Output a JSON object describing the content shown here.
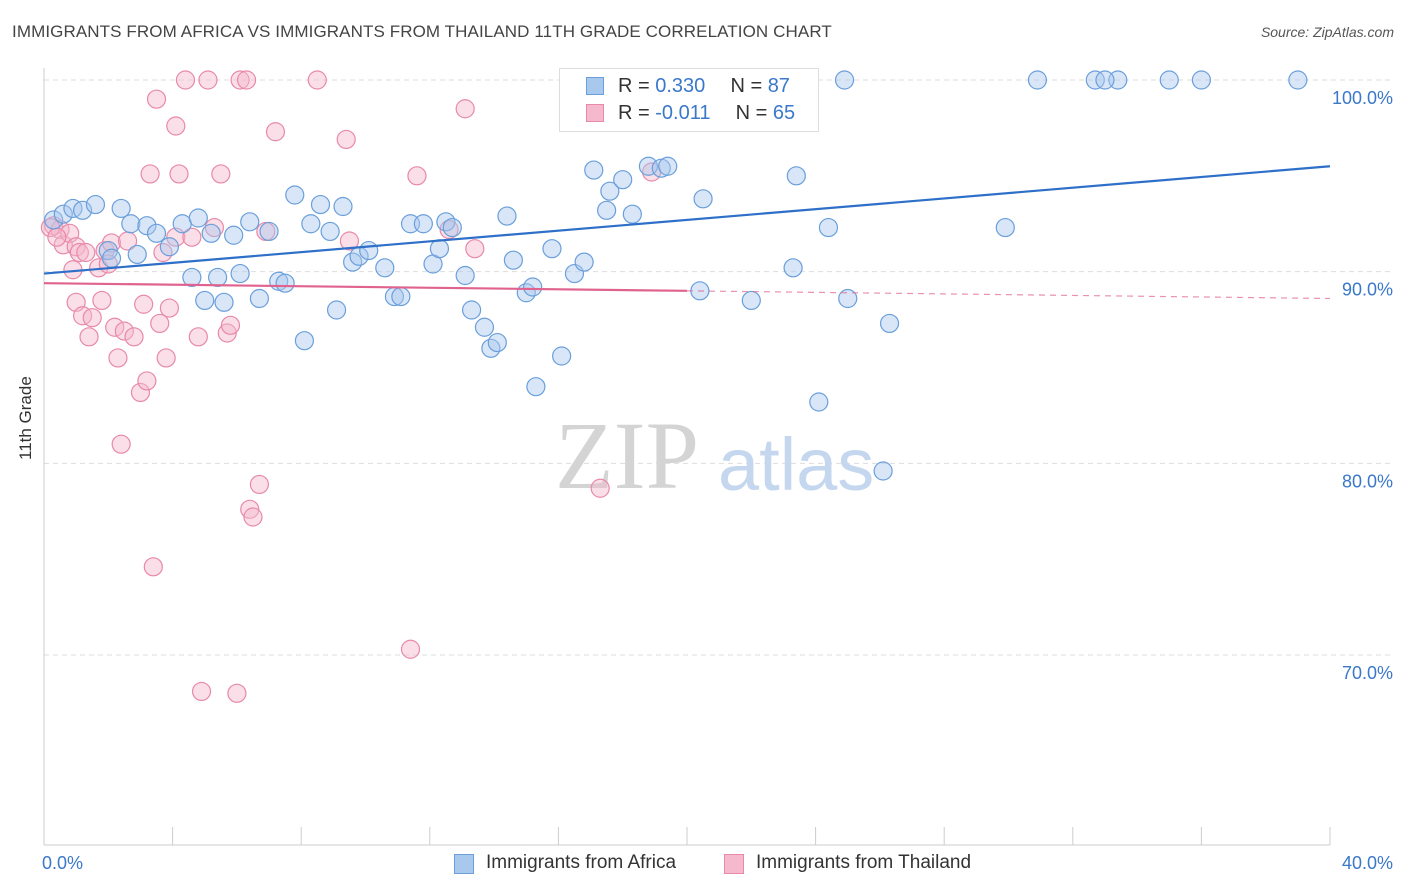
{
  "title": "IMMIGRANTS FROM AFRICA VS IMMIGRANTS FROM THAILAND 11TH GRADE CORRELATION CHART",
  "source": "Source: ZipAtlas.com",
  "watermark": {
    "zip": "ZIP",
    "atlas": "atlas"
  },
  "colors": {
    "africa_fill": "#a9c8ee",
    "africa_stroke": "#6a9fdb",
    "africa_line": "#2d6fc9",
    "thailand_fill": "#f5b8cc",
    "thailand_stroke": "#e889a8",
    "thailand_line": "#e0628f",
    "axis_text": "#3a78c9",
    "grid": "#dddddd"
  },
  "legend": {
    "rows": [
      {
        "r_label": "R = ",
        "r_value": "0.330",
        "n_label": "N = ",
        "n_value": "87"
      },
      {
        "r_label": "R = ",
        "r_value": "-0.011",
        "n_label": "N = ",
        "n_value": "65"
      }
    ]
  },
  "bottom_legend": [
    "Immigrants from Africa",
    "Immigrants from Thailand"
  ],
  "chart_data": {
    "type": "scatter",
    "title": "IMMIGRANTS FROM AFRICA VS IMMIGRANTS FROM THAILAND 11TH GRADE CORRELATION CHART",
    "xlabel": "",
    "ylabel": "11th Grade",
    "xlim": [
      0,
      40
    ],
    "ylim": [
      60,
      101.5
    ],
    "x_tick_labels": [
      "0.0%",
      "40.0%"
    ],
    "y_ticks": [
      70,
      80,
      90,
      100
    ],
    "y_tick_labels": [
      "70.0%",
      "80.0%",
      "90.0%",
      "100.0%"
    ],
    "grid": true,
    "legend_position": "top-center",
    "series": [
      {
        "name": "Immigrants from Africa",
        "r": 0.33,
        "n": 87,
        "trend": {
          "x": [
            0,
            40
          ],
          "y": [
            89.9,
            95.5
          ],
          "dashed_from": null
        },
        "points": [
          [
            0.3,
            92.7
          ],
          [
            0.6,
            93.0
          ],
          [
            0.9,
            93.3
          ],
          [
            1.2,
            93.2
          ],
          [
            1.6,
            93.5
          ],
          [
            2.4,
            93.3
          ],
          [
            2.0,
            91.1
          ],
          [
            2.1,
            90.7
          ],
          [
            2.7,
            92.5
          ],
          [
            2.9,
            90.9
          ],
          [
            3.2,
            92.4
          ],
          [
            3.5,
            92.0
          ],
          [
            3.9,
            91.3
          ],
          [
            4.3,
            92.5
          ],
          [
            4.6,
            89.7
          ],
          [
            4.8,
            92.8
          ],
          [
            5.0,
            88.5
          ],
          [
            5.2,
            92.0
          ],
          [
            5.4,
            89.7
          ],
          [
            5.6,
            88.4
          ],
          [
            5.9,
            91.9
          ],
          [
            6.1,
            89.9
          ],
          [
            6.4,
            92.6
          ],
          [
            6.7,
            88.6
          ],
          [
            7.0,
            92.1
          ],
          [
            7.3,
            89.5
          ],
          [
            7.5,
            89.4
          ],
          [
            7.8,
            94.0
          ],
          [
            8.1,
            86.4
          ],
          [
            8.3,
            92.5
          ],
          [
            8.6,
            93.5
          ],
          [
            8.9,
            92.1
          ],
          [
            9.1,
            88.0
          ],
          [
            9.3,
            93.4
          ],
          [
            9.6,
            90.5
          ],
          [
            9.8,
            90.8
          ],
          [
            10.1,
            91.1
          ],
          [
            10.6,
            90.2
          ],
          [
            10.9,
            88.7
          ],
          [
            11.1,
            88.7
          ],
          [
            11.4,
            92.5
          ],
          [
            11.8,
            92.5
          ],
          [
            12.1,
            90.4
          ],
          [
            12.3,
            91.2
          ],
          [
            12.5,
            92.6
          ],
          [
            12.7,
            92.3
          ],
          [
            13.1,
            89.8
          ],
          [
            13.3,
            88.0
          ],
          [
            13.7,
            87.1
          ],
          [
            13.9,
            86.0
          ],
          [
            14.1,
            86.3
          ],
          [
            14.4,
            92.9
          ],
          [
            14.6,
            90.6
          ],
          [
            15.0,
            88.9
          ],
          [
            15.2,
            89.2
          ],
          [
            15.3,
            84.0
          ],
          [
            15.8,
            91.2
          ],
          [
            16.1,
            85.6
          ],
          [
            16.5,
            89.9
          ],
          [
            16.8,
            90.5
          ],
          [
            17.1,
            95.3
          ],
          [
            17.5,
            93.2
          ],
          [
            17.6,
            94.2
          ],
          [
            18.0,
            94.8
          ],
          [
            18.3,
            93.0
          ],
          [
            18.8,
            95.5
          ],
          [
            19.2,
            95.4
          ],
          [
            19.4,
            95.5
          ],
          [
            20.4,
            89.0
          ],
          [
            20.5,
            93.8
          ],
          [
            22.0,
            88.5
          ],
          [
            23.3,
            90.2
          ],
          [
            23.4,
            95.0
          ],
          [
            24.1,
            83.2
          ],
          [
            24.4,
            92.3
          ],
          [
            24.9,
            100.0
          ],
          [
            25.0,
            88.6
          ],
          [
            26.3,
            87.3
          ],
          [
            26.1,
            79.6
          ],
          [
            29.9,
            92.3
          ],
          [
            30.9,
            100.0
          ],
          [
            32.7,
            100.0
          ],
          [
            33.4,
            100.0
          ],
          [
            33.0,
            100.0
          ],
          [
            35.0,
            100.0
          ],
          [
            36.0,
            100.0
          ],
          [
            39.0,
            100.0
          ]
        ]
      },
      {
        "name": "Immigrants from Thailand",
        "r": -0.011,
        "n": 65,
        "trend": {
          "x": [
            0,
            40
          ],
          "y": [
            89.4,
            88.6
          ],
          "dashed_from": 20
        },
        "points": [
          [
            0.3,
            92.4
          ],
          [
            0.5,
            92.2
          ],
          [
            0.6,
            91.4
          ],
          [
            0.8,
            92.0
          ],
          [
            1.0,
            91.3
          ],
          [
            1.0,
            88.4
          ],
          [
            1.1,
            91.0
          ],
          [
            1.2,
            87.7
          ],
          [
            1.4,
            86.6
          ],
          [
            1.5,
            87.6
          ],
          [
            1.7,
            90.2
          ],
          [
            1.8,
            88.5
          ],
          [
            1.9,
            91.1
          ],
          [
            2.1,
            91.5
          ],
          [
            2.2,
            87.1
          ],
          [
            2.3,
            85.5
          ],
          [
            2.4,
            81.0
          ],
          [
            2.5,
            86.9
          ],
          [
            2.6,
            91.6
          ],
          [
            2.8,
            86.6
          ],
          [
            3.0,
            83.7
          ],
          [
            3.1,
            88.3
          ],
          [
            3.2,
            84.3
          ],
          [
            3.3,
            95.1
          ],
          [
            3.4,
            74.6
          ],
          [
            3.5,
            99.0
          ],
          [
            3.6,
            87.3
          ],
          [
            3.7,
            91.0
          ],
          [
            3.8,
            85.5
          ],
          [
            3.9,
            88.1
          ],
          [
            4.1,
            91.8
          ],
          [
            4.1,
            97.6
          ],
          [
            4.2,
            95.1
          ],
          [
            4.4,
            100.0
          ],
          [
            4.6,
            91.8
          ],
          [
            4.8,
            86.6
          ],
          [
            4.9,
            68.1
          ],
          [
            5.1,
            100.0
          ],
          [
            5.3,
            92.3
          ],
          [
            5.5,
            95.1
          ],
          [
            5.7,
            86.8
          ],
          [
            5.8,
            87.2
          ],
          [
            6.0,
            68.0
          ],
          [
            6.1,
            100.0
          ],
          [
            6.3,
            100.0
          ],
          [
            6.4,
            77.6
          ],
          [
            6.5,
            77.2
          ],
          [
            6.7,
            78.9
          ],
          [
            6.9,
            92.1
          ],
          [
            7.2,
            97.3
          ],
          [
            8.5,
            100.0
          ],
          [
            9.4,
            96.9
          ],
          [
            9.5,
            91.6
          ],
          [
            11.4,
            70.3
          ],
          [
            11.6,
            95.0
          ],
          [
            12.6,
            92.2
          ],
          [
            13.1,
            98.5
          ],
          [
            13.4,
            91.2
          ],
          [
            17.3,
            78.7
          ],
          [
            18.9,
            95.2
          ],
          [
            0.2,
            92.3
          ],
          [
            0.4,
            91.8
          ],
          [
            0.9,
            90.1
          ],
          [
            1.3,
            91.0
          ],
          [
            2.0,
            90.4
          ]
        ]
      }
    ]
  }
}
